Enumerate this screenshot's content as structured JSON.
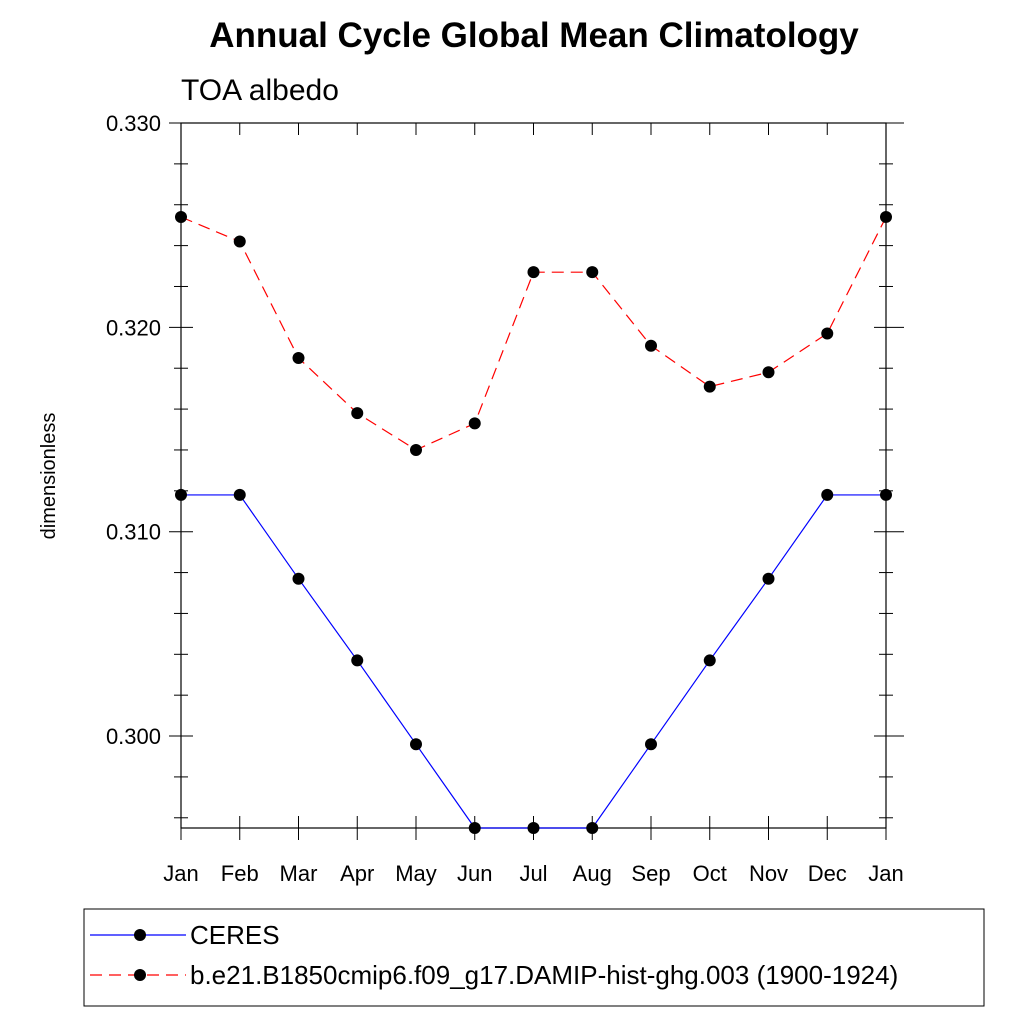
{
  "chart_data": {
    "type": "line",
    "title": "Annual Cycle Global Mean Climatology",
    "subtitle": "TOA albedo",
    "xlabel": "",
    "ylabel": "dimensionless",
    "categories": [
      "Jan",
      "Feb",
      "Mar",
      "Apr",
      "May",
      "Jun",
      "Jul",
      "Aug",
      "Sep",
      "Oct",
      "Nov",
      "Dec",
      "Jan"
    ],
    "ylim": [
      0.2955,
      0.33
    ],
    "yticks": [
      "0.300",
      "0.310",
      "0.320",
      "0.330"
    ],
    "ytick_values": [
      0.3,
      0.31,
      0.32,
      0.33
    ],
    "series": [
      {
        "name": "CERES",
        "color": "#0000ff",
        "dash": "solid",
        "values": [
          0.3118,
          0.3118,
          0.3077,
          0.3037,
          0.2996,
          0.2955,
          0.2955,
          0.2955,
          0.2996,
          0.3037,
          0.3077,
          0.3118,
          0.3118
        ]
      },
      {
        "name": "b.e21.B1850cmip6.f09_g17.DAMIP-hist-ghg.003 (1900-1924)",
        "color": "#ff0000",
        "dash": "dashed",
        "values": [
          0.3254,
          0.3242,
          0.3185,
          0.3158,
          0.314,
          0.3153,
          0.3227,
          0.3227,
          0.3191,
          0.3171,
          0.3178,
          0.3197,
          0.3254
        ]
      }
    ],
    "legend_position": "bottom",
    "grid": false
  }
}
